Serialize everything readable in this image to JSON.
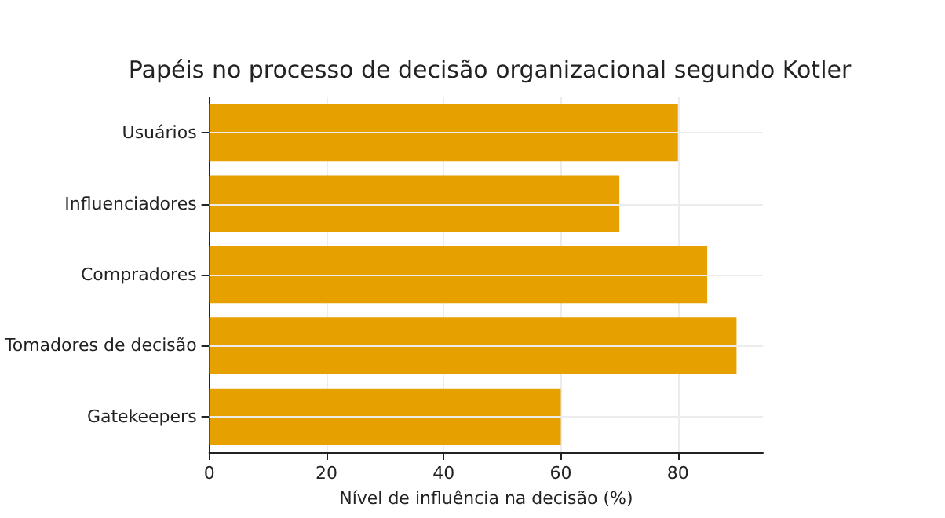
{
  "chart_data": {
    "type": "bar",
    "orientation": "horizontal",
    "title": "Papéis no processo de decisão organizacional segundo Kotler",
    "xlabel": "Nível de influência na decisão (%)",
    "categories": [
      "Usuários",
      "Influenciadores",
      "Compradores",
      "Tomadores de decisão",
      "Gatekeepers"
    ],
    "values": [
      80,
      70,
      85,
      90,
      60
    ],
    "color": "#e6a000",
    "xlim": [
      0,
      94.5
    ],
    "xticks": [
      0,
      20,
      40,
      60,
      80
    ],
    "grid": true
  }
}
